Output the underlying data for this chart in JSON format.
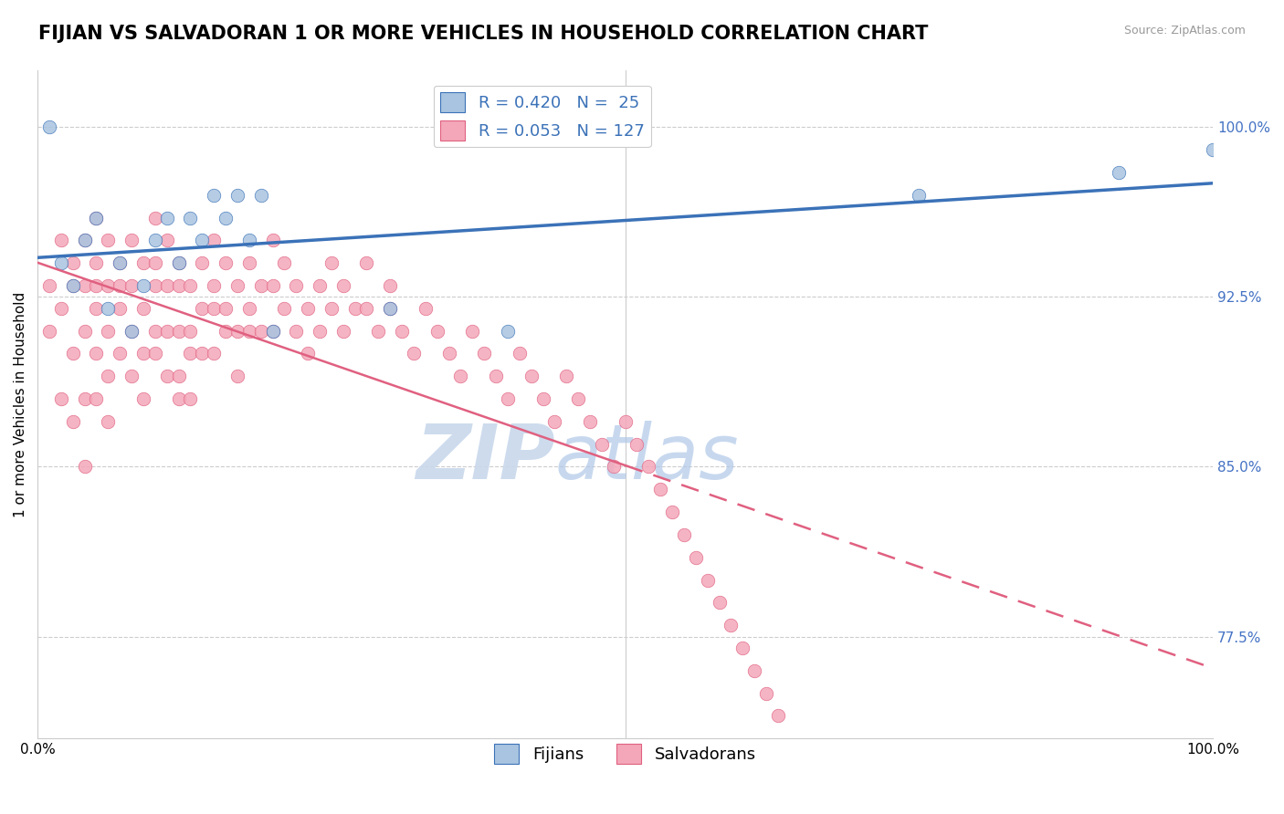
{
  "title": "FIJIAN VS SALVADORAN 1 OR MORE VEHICLES IN HOUSEHOLD CORRELATION CHART",
  "source_text": "Source: ZipAtlas.com",
  "ylabel": "1 or more Vehicles in Household",
  "legend_fijian": "Fijians",
  "legend_salvadoran": "Salvadorans",
  "r_fijian": 0.42,
  "n_fijian": 25,
  "r_salvadoran": 0.053,
  "n_salvadoran": 127,
  "xlim": [
    0.0,
    100.0
  ],
  "ylim": [
    73.0,
    102.5
  ],
  "yticks": [
    77.5,
    85.0,
    92.5,
    100.0
  ],
  "ytick_labels": [
    "77.5%",
    "85.0%",
    "92.5%",
    "100.0%"
  ],
  "xticks": [
    0.0,
    25.0,
    50.0,
    75.0,
    100.0
  ],
  "xtick_labels": [
    "0.0%",
    "",
    "",
    "",
    "100.0%"
  ],
  "fijian_color": "#a8c4e0",
  "salvadoran_color": "#f4a7b9",
  "trend_fijian_color": "#3b72b8",
  "trend_salvadoran_color": "#e06080",
  "watermark_color": "#d0dff0",
  "background_color": "#ffffff",
  "title_fontsize": 15,
  "axis_label_fontsize": 11,
  "tick_fontsize": 11,
  "legend_fontsize": 13,
  "fijian_x": [
    1,
    2,
    3,
    4,
    5,
    6,
    7,
    8,
    9,
    10,
    11,
    12,
    13,
    14,
    15,
    16,
    17,
    18,
    19,
    20,
    30,
    40,
    75,
    92,
    100
  ],
  "fijian_y": [
    100,
    94,
    93,
    95,
    96,
    92,
    94,
    91,
    93,
    95,
    96,
    94,
    96,
    95,
    97,
    96,
    97,
    95,
    97,
    91,
    92,
    91,
    97,
    98,
    99
  ],
  "salvadoran_x": [
    1,
    1,
    2,
    2,
    2,
    3,
    3,
    3,
    3,
    4,
    4,
    4,
    4,
    4,
    5,
    5,
    5,
    5,
    5,
    5,
    6,
    6,
    6,
    6,
    6,
    7,
    7,
    7,
    7,
    8,
    8,
    8,
    8,
    9,
    9,
    9,
    9,
    10,
    10,
    10,
    10,
    10,
    11,
    11,
    11,
    11,
    12,
    12,
    12,
    12,
    12,
    13,
    13,
    13,
    13,
    14,
    14,
    14,
    15,
    15,
    15,
    15,
    16,
    16,
    16,
    17,
    17,
    17,
    18,
    18,
    18,
    19,
    19,
    20,
    20,
    20,
    21,
    21,
    22,
    22,
    23,
    23,
    24,
    24,
    25,
    25,
    26,
    26,
    27,
    28,
    28,
    29,
    30,
    30,
    31,
    32,
    33,
    34,
    35,
    36,
    37,
    38,
    39,
    40,
    41,
    42,
    43,
    44,
    45,
    46,
    47,
    48,
    49,
    50,
    51,
    52,
    53,
    54,
    55,
    56,
    57,
    58,
    59,
    60,
    61,
    62,
    63
  ],
  "salvadoran_y": [
    93,
    91,
    95,
    92,
    88,
    94,
    93,
    90,
    87,
    95,
    93,
    91,
    88,
    85,
    96,
    94,
    93,
    92,
    90,
    88,
    95,
    93,
    91,
    89,
    87,
    94,
    92,
    90,
    93,
    95,
    93,
    91,
    89,
    94,
    92,
    90,
    88,
    96,
    94,
    93,
    91,
    90,
    95,
    93,
    91,
    89,
    94,
    93,
    91,
    89,
    88,
    93,
    91,
    90,
    88,
    94,
    92,
    90,
    95,
    93,
    92,
    90,
    94,
    92,
    91,
    93,
    91,
    89,
    94,
    92,
    91,
    93,
    91,
    95,
    93,
    91,
    94,
    92,
    93,
    91,
    92,
    90,
    93,
    91,
    94,
    92,
    93,
    91,
    92,
    94,
    92,
    91,
    93,
    92,
    91,
    90,
    92,
    91,
    90,
    89,
    91,
    90,
    89,
    88,
    90,
    89,
    88,
    87,
    89,
    88,
    87,
    86,
    85,
    87,
    86,
    85,
    84,
    83,
    82,
    81,
    80,
    79,
    78,
    77,
    76,
    75,
    74
  ]
}
